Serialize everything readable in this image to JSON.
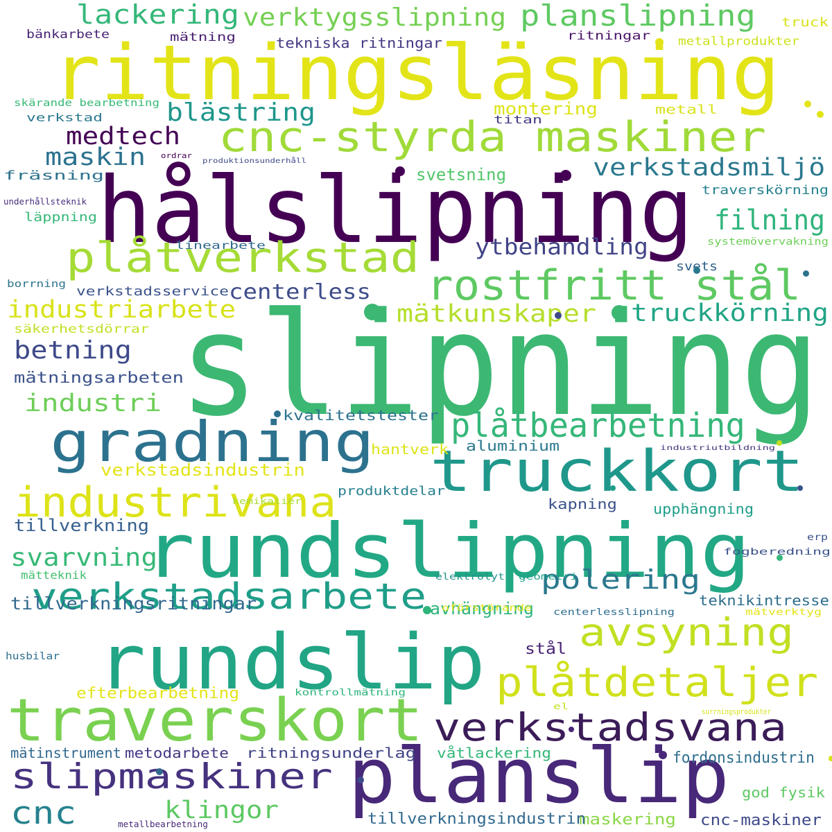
{
  "cloud": {
    "words": [
      {
        "text": "slipning",
        "color": "#3cb873"
      },
      {
        "text": "hålslipning",
        "color": "#440154"
      },
      {
        "text": "ritningsläsning",
        "color": "#e3e418"
      },
      {
        "text": "rundslipning",
        "color": "#22a884"
      },
      {
        "text": "rundslip",
        "color": "#21a585"
      },
      {
        "text": "planslip",
        "color": "#482878"
      },
      {
        "text": "traverskort",
        "color": "#7ad151"
      },
      {
        "text": "gradning",
        "color": "#2c728e"
      },
      {
        "text": "truckkort",
        "color": "#1f988b"
      },
      {
        "text": "cnc-styrda maskiner",
        "color": "#a0da39"
      },
      {
        "text": "plåtverkstad",
        "color": "#a5db36"
      },
      {
        "text": "rostfritt stål",
        "color": "#5ec962"
      },
      {
        "text": "industrivana",
        "color": "#dde318"
      },
      {
        "text": "verkstadsarbete",
        "color": "#1f9e89"
      },
      {
        "text": "verkstadsvana",
        "color": "#3b1c58"
      },
      {
        "text": "slipmaskiner",
        "color": "#46327e"
      },
      {
        "text": "plåtdetaljer",
        "color": "#d0e11c"
      },
      {
        "text": "avsyning",
        "color": "#c2df23"
      },
      {
        "text": "plåtbearbetning",
        "color": "#35b779"
      },
      {
        "text": "planslipning",
        "color": "#5ec962"
      },
      {
        "text": "verktygsslipning",
        "color": "#75d054"
      },
      {
        "text": "lackering",
        "color": "#35b779"
      },
      {
        "text": "cnc",
        "color": "#26828e"
      },
      {
        "text": "polering",
        "color": "#2a788e"
      },
      {
        "text": "blästring",
        "color": "#1f968b"
      },
      {
        "text": "industriarbete",
        "color": "#d8e219"
      },
      {
        "text": "verkstadsmiljö",
        "color": "#2a788e"
      },
      {
        "text": "filning",
        "color": "#2fb47c"
      },
      {
        "text": "mätkunskaper",
        "color": "#b5de2b"
      },
      {
        "text": "truckkörning",
        "color": "#21a585"
      },
      {
        "text": "betning",
        "color": "#3e4989"
      },
      {
        "text": "svarvning",
        "color": "#38b977"
      },
      {
        "text": "industri",
        "color": "#6ece58"
      },
      {
        "text": "medtech",
        "color": "#440154"
      },
      {
        "text": "maskin",
        "color": "#2c728e"
      },
      {
        "text": "ytbehandling",
        "color": "#414487"
      },
      {
        "text": "centerless",
        "color": "#3e4c8a"
      },
      {
        "text": "klingor",
        "color": "#5cc863"
      },
      {
        "text": "mätningsarbeten",
        "color": "#3b528b"
      },
      {
        "text": "tillverkningsritningar",
        "color": "#31688e"
      },
      {
        "text": "tillverkning",
        "color": "#355f8d"
      },
      {
        "text": "svetsning",
        "color": "#52c569"
      },
      {
        "text": "montering",
        "color": "#dde318"
      },
      {
        "text": "avhängning",
        "color": "#2fb47c"
      },
      {
        "text": "aluminium",
        "color": "#2a788e"
      },
      {
        "text": "verkstadsindustrin",
        "color": "#e3e418"
      },
      {
        "text": "efterbearbetning",
        "color": "#e3e418"
      },
      {
        "text": "kvalitetstester",
        "color": "#2c728e"
      },
      {
        "text": "stål",
        "color": "#482475"
      },
      {
        "text": "maskering",
        "color": "#8bd646"
      },
      {
        "text": "cnc-maskiner",
        "color": "#3e4989"
      },
      {
        "text": "tillverkningsindustrin",
        "color": "#31688e"
      },
      {
        "text": "ritningsunderlag",
        "color": "#414487"
      },
      {
        "text": "våtlackering",
        "color": "#35b779"
      },
      {
        "text": "fordonsindustrin",
        "color": "#2e6e8e"
      },
      {
        "text": "god fysik",
        "color": "#5ec962"
      },
      {
        "text": "mätinstrument",
        "color": "#31688e"
      },
      {
        "text": "metodarbete",
        "color": "#443983"
      },
      {
        "text": "teknikintresse",
        "color": "#2e6e8e"
      },
      {
        "text": "upphängning",
        "color": "#1f9e89"
      },
      {
        "text": "kapning",
        "color": "#3b528b"
      },
      {
        "text": "produktdelar",
        "color": "#27808e"
      },
      {
        "text": "hantverk",
        "color": "#dde318"
      },
      {
        "text": "traverskörning",
        "color": "#26828e"
      },
      {
        "text": "fräsning",
        "color": "#2c728e"
      },
      {
        "text": "läppning",
        "color": "#35b779"
      },
      {
        "text": "verkstadsservice",
        "color": "#3b528b"
      },
      {
        "text": "säkerhetsdörrar",
        "color": "#c2df23"
      },
      {
        "text": "svets",
        "color": "#33638d"
      },
      {
        "text": "metall",
        "color": "#d8e219"
      },
      {
        "text": "titan",
        "color": "#443a83"
      },
      {
        "text": "verkstad",
        "color": "#2a788e"
      },
      {
        "text": "bänkarbete",
        "color": "#482475"
      },
      {
        "text": "mätning",
        "color": "#481f70"
      },
      {
        "text": "tekniska ritningar",
        "color": "#443983"
      },
      {
        "text": "ritningar",
        "color": "#481467"
      },
      {
        "text": "truck",
        "color": "#d8e219"
      },
      {
        "text": "metallprodukter",
        "color": "#cde11d"
      },
      {
        "text": "skärande bearbetning",
        "color": "#38b977"
      },
      {
        "text": "linearbete",
        "color": "#31688e"
      },
      {
        "text": "borrning",
        "color": "#2c728e"
      },
      {
        "text": "systemövervakning",
        "color": "#6ece58"
      },
      {
        "text": "underhållsteknik",
        "color": "#472d7b"
      },
      {
        "text": "ordrar",
        "color": "#440154"
      },
      {
        "text": "produktionsunderhåll",
        "color": "#3e4a89"
      },
      {
        "text": "mätteknik",
        "color": "#44bf70"
      },
      {
        "text": "kemikalier",
        "color": "#a8db34"
      },
      {
        "text": "elektrolyt",
        "color": "#21918c"
      },
      {
        "text": "geometri",
        "color": "#1fa188"
      },
      {
        "text": "oförstörande",
        "color": "#dde318"
      },
      {
        "text": "centerlesslipning",
        "color": "#2e6e8e"
      },
      {
        "text": "mätverktyg",
        "color": "#e3e418"
      },
      {
        "text": "industriutbildning",
        "color": "#46337e"
      },
      {
        "text": "erp",
        "color": "#3b528b"
      },
      {
        "text": "fogberedning",
        "color": "#3b528b"
      },
      {
        "text": "kontrollmätning",
        "color": "#2fb47c"
      },
      {
        "text": "el",
        "color": "#c5e021"
      },
      {
        "text": "surrningsprodukter",
        "color": "#d8e219"
      },
      {
        "text": "husbilar",
        "color": "#2e6e8e"
      },
      {
        "text": "metallbearbetning",
        "color": "#482878"
      }
    ],
    "dots": [
      {
        "color": "#440154"
      },
      {
        "color": "#440154"
      },
      {
        "color": "#3cb873"
      },
      {
        "color": "#3cb873"
      },
      {
        "color": "#e3e418"
      },
      {
        "color": "#e3e418"
      },
      {
        "color": "#e3e418"
      },
      {
        "color": "#2a788e"
      },
      {
        "color": "#3e4989"
      },
      {
        "color": "#2c728e"
      },
      {
        "color": "#c5e021"
      },
      {
        "color": "#1f9e89"
      },
      {
        "color": "#3b528b"
      },
      {
        "color": "#35b779"
      },
      {
        "color": "#2fb47c"
      },
      {
        "color": "#482878"
      },
      {
        "color": "#31688e"
      },
      {
        "color": "#3e4989"
      },
      {
        "color": "#d8e219"
      },
      {
        "color": "#482475"
      },
      {
        "color": "#2c728e"
      }
    ]
  }
}
